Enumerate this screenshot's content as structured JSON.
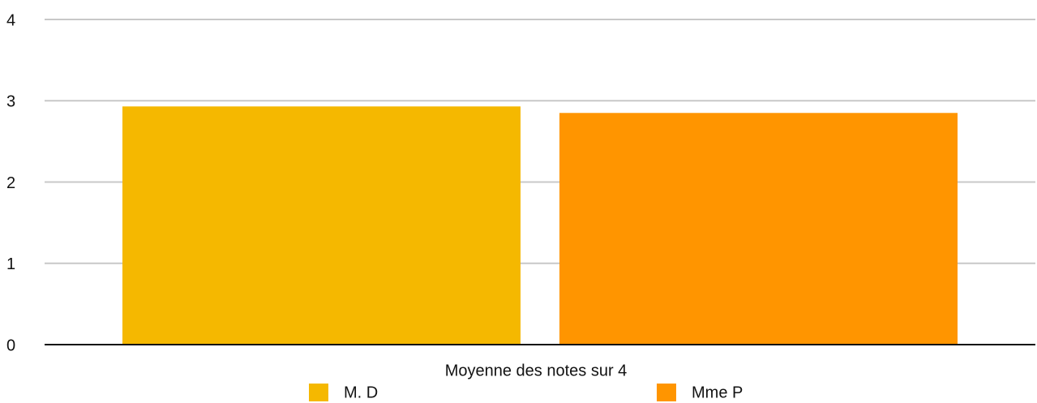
{
  "chart_data": {
    "type": "bar",
    "categories": [
      "Moyenne des notes sur 4"
    ],
    "series": [
      {
        "name": "M. D",
        "color": "#f5b800",
        "values": [
          2.93
        ]
      },
      {
        "name": "Mme P",
        "color": "#ff9500",
        "values": [
          2.85
        ]
      }
    ],
    "ylim": [
      0,
      4
    ],
    "yticks": [
      0,
      1,
      2,
      3,
      4
    ],
    "grid": true,
    "legend": "bottom"
  }
}
